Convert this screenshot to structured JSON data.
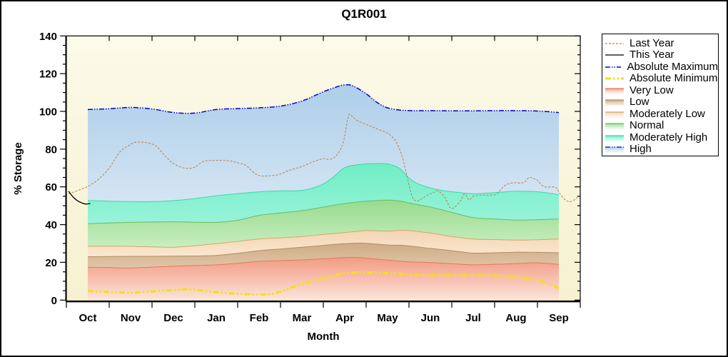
{
  "title": "Q1R001",
  "x_axis": {
    "label": "Month",
    "categories": [
      "Oct",
      "Nov",
      "Dec",
      "Jan",
      "Feb",
      "Mar",
      "Apr",
      "May",
      "Jun",
      "Jul",
      "Aug",
      "Sep"
    ]
  },
  "y_axis": {
    "label": "% Storage",
    "tick_values": [
      0,
      20,
      40,
      60,
      80,
      100,
      120,
      140
    ],
    "minor_step": 5,
    "max": 140
  },
  "plot_background": {
    "top": "#FCFAE9",
    "bottom": "#F6F1D0"
  },
  "legend": {
    "items": [
      {
        "label": "Last Year",
        "kind": "line",
        "color": "#B9854E",
        "dash": "3 2",
        "width": 1.2
      },
      {
        "label": "This Year",
        "kind": "line",
        "color": "#000000",
        "dash": "",
        "width": 1.3
      },
      {
        "label": "Absolute Maximum",
        "kind": "line",
        "color": "#0000DC",
        "dash": "7 2 1.5 2 1.5 2",
        "width": 1.5
      },
      {
        "label": "Absolute Minimum",
        "kind": "line",
        "color": "#F2E20C",
        "dash": "8 3 2.5 3 2.5 3",
        "width": 3
      },
      {
        "label": "Very Low",
        "kind": "band",
        "top": "#F29B82",
        "bottom": "#FCE4DB",
        "edge": "#E4785C"
      },
      {
        "label": "Low",
        "kind": "band",
        "top": "#CEAC85",
        "bottom": "#E0C6A8",
        "edge": "#B78B5E"
      },
      {
        "label": "Moderately Low",
        "kind": "band",
        "top": "#F4D5B2",
        "bottom": "#FAE7D1",
        "edge": "#D9A468"
      },
      {
        "label": "Normal",
        "kind": "band",
        "top": "#98DB8E",
        "bottom": "#C8EEC0",
        "edge": "#67BE62"
      },
      {
        "label": "Moderately High",
        "kind": "band",
        "top": "#70EEC4",
        "bottom": "#99F3DA",
        "edge": "#35DBA6"
      },
      {
        "label": "High",
        "kind": "band",
        "top": "#ADCEE9",
        "bottom": "#D4E5F3",
        "edge_line": {
          "color": "#0000DC",
          "dash": "7 2 1.5 2 1.5 2"
        }
      }
    ]
  },
  "chart_data": {
    "type": "area",
    "title": "Q1R001",
    "xlabel": "Month",
    "ylabel": "% Storage",
    "ylim": [
      0,
      140
    ],
    "x_encoding": "month index, Oct=0 .. Sep=11 (fractional = within month)",
    "bands": [
      {
        "name": "very-low",
        "label": "Very Low",
        "color_top": "#F29B82",
        "color_bottom": "#FCE4DB",
        "edge": "#E4785C",
        "points": [
          [
            0,
            17.4
          ],
          [
            0.5,
            17.2
          ],
          [
            1,
            17.0
          ],
          [
            1.5,
            17.5
          ],
          [
            2,
            18.0
          ],
          [
            2.5,
            18.3
          ],
          [
            3,
            18.7
          ],
          [
            3.5,
            19.5
          ],
          [
            4,
            20.5
          ],
          [
            4.5,
            20.9
          ],
          [
            5,
            21.3
          ],
          [
            5.5,
            21.9
          ],
          [
            6,
            22.5
          ],
          [
            6.3,
            22.6
          ],
          [
            7,
            21.2
          ],
          [
            7.5,
            20.3
          ],
          [
            8,
            19.9
          ],
          [
            8.5,
            19.3
          ],
          [
            9,
            18.7
          ],
          [
            9.5,
            19.0
          ],
          [
            10,
            19.3
          ],
          [
            10.4,
            19.8
          ],
          [
            10.7,
            19.5
          ],
          [
            11,
            18.9
          ]
        ]
      },
      {
        "name": "low",
        "label": "Low",
        "color_top": "#CEAC85",
        "color_bottom": "#E0C6A8",
        "edge": "#B78B5E",
        "points": [
          [
            0,
            23.0
          ],
          [
            0.5,
            23.1
          ],
          [
            1,
            23.2
          ],
          [
            1.5,
            23.2
          ],
          [
            2,
            23.3
          ],
          [
            2.5,
            23.4
          ],
          [
            3,
            23.7
          ],
          [
            3.5,
            24.8
          ],
          [
            4,
            26.2
          ],
          [
            4.5,
            27.1
          ],
          [
            5,
            28.0
          ],
          [
            5.5,
            29.0
          ],
          [
            6,
            29.9
          ],
          [
            6.4,
            30.2
          ],
          [
            7,
            29.2
          ],
          [
            7.4,
            28.9
          ],
          [
            8,
            27.4
          ],
          [
            8.5,
            26.2
          ],
          [
            9,
            24.9
          ],
          [
            9.5,
            25.1
          ],
          [
            10,
            25.4
          ],
          [
            10.5,
            25.3
          ],
          [
            11,
            25.1
          ]
        ]
      },
      {
        "name": "moderately-low",
        "label": "Moderately Low",
        "color_top": "#F4D5B2",
        "color_bottom": "#FAE7D1",
        "edge": "#D9A468",
        "points": [
          [
            0,
            28.6
          ],
          [
            0.5,
            28.6
          ],
          [
            1,
            28.5
          ],
          [
            1.5,
            28.2
          ],
          [
            2,
            28.0
          ],
          [
            2.5,
            28.8
          ],
          [
            3,
            29.9
          ],
          [
            3.5,
            31.1
          ],
          [
            4,
            32.4
          ],
          [
            4.5,
            33.0
          ],
          [
            5,
            33.7
          ],
          [
            5.5,
            34.8
          ],
          [
            6,
            35.8
          ],
          [
            6.5,
            36.8
          ],
          [
            7,
            36.5
          ],
          [
            7.4,
            37.0
          ],
          [
            8,
            35.5
          ],
          [
            8.5,
            33.7
          ],
          [
            9,
            32.4
          ],
          [
            9.5,
            32.1
          ],
          [
            10,
            31.8
          ],
          [
            10.5,
            32.0
          ],
          [
            11,
            32.4
          ]
        ]
      },
      {
        "name": "normal",
        "label": "Normal",
        "color_top": "#98DB8E",
        "color_bottom": "#C8EEC0",
        "edge": "#67BE62",
        "points": [
          [
            0,
            40.5
          ],
          [
            0.5,
            40.9
          ],
          [
            1,
            41.2
          ],
          [
            1.5,
            41.4
          ],
          [
            2,
            41.5
          ],
          [
            2.5,
            41.3
          ],
          [
            3,
            41.2
          ],
          [
            3.5,
            42.3
          ],
          [
            4,
            44.9
          ],
          [
            4.5,
            46.2
          ],
          [
            5,
            47.4
          ],
          [
            5.5,
            49.3
          ],
          [
            6,
            51.2
          ],
          [
            6.5,
            52.4
          ],
          [
            7,
            53.0
          ],
          [
            7.3,
            52.5
          ],
          [
            7.6,
            51.0
          ],
          [
            8,
            49.3
          ],
          [
            8.5,
            46.5
          ],
          [
            9,
            43.7
          ],
          [
            9.5,
            43.0
          ],
          [
            10,
            42.4
          ],
          [
            10.5,
            42.6
          ],
          [
            11,
            43.0
          ]
        ]
      },
      {
        "name": "moderately-high",
        "label": "Moderately High",
        "color_top": "#70EEC4",
        "color_bottom": "#99F3DA",
        "edge": "#35DBA6",
        "points": [
          [
            0,
            52.8
          ],
          [
            0.5,
            52.4
          ],
          [
            1,
            52.2
          ],
          [
            1.5,
            52.2
          ],
          [
            2,
            52.7
          ],
          [
            2.5,
            53.8
          ],
          [
            3,
            55.3
          ],
          [
            3.5,
            56.4
          ],
          [
            4,
            57.4
          ],
          [
            4.5,
            57.9
          ],
          [
            5,
            58.1
          ],
          [
            5.4,
            60.5
          ],
          [
            5.7,
            64.5
          ],
          [
            6,
            70.2
          ],
          [
            6.4,
            72.0
          ],
          [
            6.8,
            72.4
          ],
          [
            7,
            72.2
          ],
          [
            7.15,
            71.2
          ],
          [
            7.3,
            69.5
          ],
          [
            7.5,
            64.7
          ],
          [
            7.7,
            61.7
          ],
          [
            8,
            59.5
          ],
          [
            8.3,
            58.0
          ],
          [
            8.6,
            57.2
          ],
          [
            9,
            56.4
          ],
          [
            9.4,
            56.8
          ],
          [
            9.7,
            57.3
          ],
          [
            10,
            57.7
          ],
          [
            10.4,
            57.5
          ],
          [
            10.7,
            56.9
          ],
          [
            11,
            55.8
          ]
        ]
      },
      {
        "name": "high",
        "label": "High",
        "color_top": "#ADCEE9",
        "color_bottom": "#D4E5F3",
        "edge": null,
        "points_from_line": "Absolute Maximum"
      }
    ],
    "lines": [
      {
        "name": "absolute-maximum",
        "label": "Absolute Maximum",
        "color": "#0000DC",
        "width": 1.5,
        "dash": "7 2 1.5 2 1.5 2",
        "points": [
          [
            0,
            101.0
          ],
          [
            0.5,
            101.4
          ],
          [
            1,
            102.1
          ],
          [
            1.5,
            101.3
          ],
          [
            2,
            99.4
          ],
          [
            2.5,
            99.1
          ],
          [
            3,
            101.0
          ],
          [
            3.5,
            101.5
          ],
          [
            4,
            101.9
          ],
          [
            4.5,
            102.8
          ],
          [
            5,
            105.5
          ],
          [
            5.5,
            110.4
          ],
          [
            5.8,
            112.9
          ],
          [
            6,
            114.1
          ],
          [
            6.2,
            113.4
          ],
          [
            6.5,
            109.4
          ],
          [
            6.75,
            104.8
          ],
          [
            7,
            101.9
          ],
          [
            7.3,
            100.7
          ],
          [
            7.6,
            100.4
          ],
          [
            8,
            100.4
          ],
          [
            8.5,
            100.3
          ],
          [
            9,
            100.3
          ],
          [
            9.5,
            100.4
          ],
          [
            10,
            100.4
          ],
          [
            10.5,
            100.2
          ],
          [
            11,
            99.4
          ]
        ]
      },
      {
        "name": "absolute-minimum",
        "label": "Absolute Minimum",
        "color": "#F2E20C",
        "width": 3,
        "dash": "8 3 2.5 3 2.5 3",
        "points": [
          [
            0,
            4.9
          ],
          [
            0.5,
            4.3
          ],
          [
            1,
            3.9
          ],
          [
            1.5,
            4.6
          ],
          [
            2,
            5.3
          ],
          [
            2.4,
            5.6
          ],
          [
            3,
            4.2
          ],
          [
            3.5,
            3.4
          ],
          [
            4,
            3.0
          ],
          [
            4.4,
            3.8
          ],
          [
            5,
            8.6
          ],
          [
            5.5,
            11.5
          ],
          [
            6,
            14.3
          ],
          [
            6.5,
            14.6
          ],
          [
            7,
            14.4
          ],
          [
            7.5,
            13.6
          ],
          [
            8,
            13.2
          ],
          [
            8.5,
            13.3
          ],
          [
            9,
            13.4
          ],
          [
            9.5,
            13.0
          ],
          [
            10,
            12.4
          ],
          [
            10.3,
            11.5
          ],
          [
            10.6,
            9.9
          ],
          [
            10.8,
            8.2
          ],
          [
            11,
            6.4
          ]
        ]
      },
      {
        "name": "last-year",
        "label": "Last Year",
        "color": "#B9854E",
        "width": 1.05,
        "dash": "3 2",
        "points": [
          [
            -0.45,
            56.3
          ],
          [
            -0.3,
            57.5
          ],
          [
            -0.1,
            59.3
          ],
          [
            0,
            60.2
          ],
          [
            0.25,
            64.0
          ],
          [
            0.5,
            70.0
          ],
          [
            0.75,
            78.5
          ],
          [
            1,
            82.5
          ],
          [
            1.15,
            83.7
          ],
          [
            1.4,
            83.3
          ],
          [
            1.6,
            81.5
          ],
          [
            1.8,
            76.5
          ],
          [
            2,
            72.4
          ],
          [
            2.2,
            70.3
          ],
          [
            2.35,
            69.8
          ],
          [
            2.5,
            70.5
          ],
          [
            2.7,
            73.5
          ],
          [
            2.9,
            74.0
          ],
          [
            3.1,
            74.0
          ],
          [
            3.3,
            73.8
          ],
          [
            3.5,
            72.8
          ],
          [
            3.7,
            71.3
          ],
          [
            3.85,
            68.0
          ],
          [
            4,
            66.0
          ],
          [
            4.2,
            65.8
          ],
          [
            4.45,
            66.5
          ],
          [
            4.7,
            68.7
          ],
          [
            5,
            70.8
          ],
          [
            5.2,
            72.7
          ],
          [
            5.35,
            74.0
          ],
          [
            5.5,
            74.9
          ],
          [
            5.62,
            74.6
          ],
          [
            5.75,
            75.5
          ],
          [
            5.88,
            79.0
          ],
          [
            5.98,
            85.0
          ],
          [
            6.08,
            97.0
          ],
          [
            6.13,
            98.3
          ],
          [
            6.25,
            95.8
          ],
          [
            6.4,
            94.0
          ],
          [
            6.6,
            92.2
          ],
          [
            6.8,
            90.3
          ],
          [
            7.0,
            88.5
          ],
          [
            7.15,
            85.5
          ],
          [
            7.25,
            81.5
          ],
          [
            7.35,
            75.5
          ],
          [
            7.45,
            66.0
          ],
          [
            7.55,
            56.5
          ],
          [
            7.62,
            53.2
          ],
          [
            7.7,
            52.5
          ],
          [
            7.8,
            53.7
          ],
          [
            7.95,
            55.8
          ],
          [
            8.1,
            57.3
          ],
          [
            8.2,
            57.7
          ],
          [
            8.35,
            54.0
          ],
          [
            8.45,
            49.3
          ],
          [
            8.55,
            48.9
          ],
          [
            8.7,
            52.5
          ],
          [
            8.8,
            56.3
          ],
          [
            8.9,
            53.2
          ],
          [
            9.0,
            55.0
          ],
          [
            9.15,
            55.6
          ],
          [
            9.35,
            55.6
          ],
          [
            9.55,
            56.2
          ],
          [
            9.7,
            60.0
          ],
          [
            9.85,
            61.8
          ],
          [
            10.0,
            62.2
          ],
          [
            10.1,
            62.0
          ],
          [
            10.2,
            62.6
          ],
          [
            10.3,
            64.9
          ],
          [
            10.4,
            64.5
          ],
          [
            10.5,
            63.5
          ],
          [
            10.6,
            61.0
          ],
          [
            10.7,
            59.9
          ],
          [
            10.85,
            60.0
          ],
          [
            10.95,
            59.3
          ],
          [
            11.03,
            56.2
          ],
          [
            11.12,
            53.7
          ],
          [
            11.2,
            52.4
          ],
          [
            11.28,
            52.2
          ],
          [
            11.37,
            53.2
          ],
          [
            11.45,
            54.9
          ]
        ]
      },
      {
        "name": "this-year",
        "label": "This Year",
        "color": "#000000",
        "width": 1.3,
        "dash": "",
        "points": [
          [
            -0.45,
            57.7
          ],
          [
            -0.35,
            54.8
          ],
          [
            -0.25,
            52.8
          ],
          [
            -0.15,
            51.6
          ],
          [
            -0.05,
            50.9
          ],
          [
            0.06,
            51.2
          ]
        ]
      }
    ]
  }
}
